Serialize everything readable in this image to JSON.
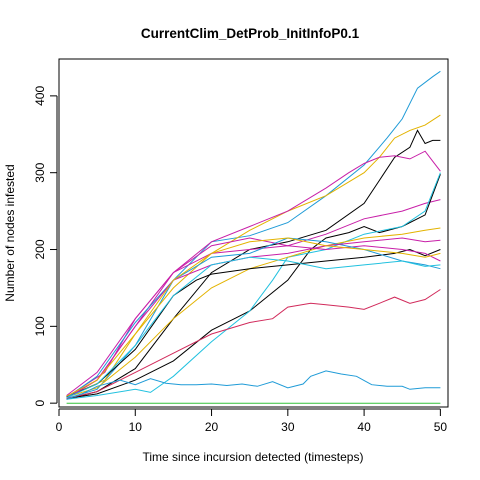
{
  "chart_data": {
    "type": "line",
    "title": "CurrentClim_DetProb_InitInfoP0.1",
    "xlabel": "Time since incursion detected (timesteps)",
    "ylabel": "Number of nodes infested",
    "xlim": [
      0,
      51
    ],
    "ylim": [
      -5,
      448
    ],
    "xticks": [
      0,
      10,
      20,
      30,
      40,
      50
    ],
    "yticks": [
      0,
      100,
      200,
      300,
      400
    ],
    "grid": false,
    "legend": "none",
    "series": [
      {
        "color": "#1f9bd7",
        "points": [
          [
            1,
            6
          ],
          [
            5,
            18
          ],
          [
            10,
            75
          ],
          [
            15,
            160
          ],
          [
            20,
            210
          ],
          [
            25,
            218
          ],
          [
            30,
            235
          ],
          [
            35,
            270
          ],
          [
            40,
            310
          ],
          [
            43,
            345
          ],
          [
            45,
            370
          ],
          [
            47,
            410
          ],
          [
            49,
            425
          ],
          [
            50,
            432
          ]
        ]
      },
      {
        "color": "#e3b300",
        "points": [
          [
            1,
            8
          ],
          [
            6,
            30
          ],
          [
            10,
            90
          ],
          [
            15,
            150
          ],
          [
            20,
            195
          ],
          [
            25,
            225
          ],
          [
            30,
            250
          ],
          [
            35,
            270
          ],
          [
            40,
            300
          ],
          [
            42,
            320
          ],
          [
            44,
            345
          ],
          [
            46,
            355
          ],
          [
            48,
            362
          ],
          [
            50,
            375
          ]
        ]
      },
      {
        "color": "#000000",
        "points": [
          [
            1,
            5
          ],
          [
            5,
            15
          ],
          [
            10,
            45
          ],
          [
            15,
            110
          ],
          [
            20,
            170
          ],
          [
            25,
            200
          ],
          [
            30,
            210
          ],
          [
            35,
            225
          ],
          [
            40,
            260
          ],
          [
            42,
            290
          ],
          [
            44,
            320
          ],
          [
            46,
            333
          ],
          [
            47,
            355
          ],
          [
            48,
            338
          ],
          [
            49,
            342
          ],
          [
            50,
            342
          ]
        ]
      },
      {
        "color": "#c81fa8",
        "points": [
          [
            1,
            8
          ],
          [
            6,
            40
          ],
          [
            10,
            110
          ],
          [
            15,
            170
          ],
          [
            20,
            210
          ],
          [
            25,
            230
          ],
          [
            30,
            250
          ],
          [
            35,
            280
          ],
          [
            38,
            300
          ],
          [
            40,
            312
          ],
          [
            42,
            320
          ],
          [
            44,
            322
          ],
          [
            46,
            318
          ],
          [
            48,
            328
          ],
          [
            49,
            315
          ],
          [
            50,
            302
          ]
        ]
      },
      {
        "color": "#c81fa8",
        "points": [
          [
            1,
            7
          ],
          [
            5,
            30
          ],
          [
            10,
            100
          ],
          [
            15,
            170
          ],
          [
            20,
            205
          ],
          [
            25,
            215
          ],
          [
            30,
            205
          ],
          [
            35,
            220
          ],
          [
            40,
            240
          ],
          [
            45,
            250
          ],
          [
            48,
            260
          ],
          [
            50,
            265
          ]
        ]
      },
      {
        "color": "#000000",
        "points": [
          [
            1,
            6
          ],
          [
            5,
            12
          ],
          [
            10,
            30
          ],
          [
            15,
            55
          ],
          [
            20,
            95
          ],
          [
            23,
            110
          ],
          [
            25,
            120
          ],
          [
            30,
            160
          ],
          [
            33,
            200
          ],
          [
            35,
            215
          ],
          [
            38,
            222
          ],
          [
            40,
            230
          ],
          [
            42,
            222
          ],
          [
            45,
            230
          ],
          [
            48,
            245
          ],
          [
            50,
            298
          ]
        ]
      },
      {
        "color": "#21c1df",
        "points": [
          [
            1,
            5
          ],
          [
            5,
            10
          ],
          [
            10,
            18
          ],
          [
            12,
            14
          ],
          [
            15,
            35
          ],
          [
            20,
            80
          ],
          [
            25,
            120
          ],
          [
            28,
            160
          ],
          [
            30,
            190
          ],
          [
            35,
            200
          ],
          [
            40,
            220
          ],
          [
            45,
            230
          ],
          [
            48,
            250
          ],
          [
            50,
            300
          ]
        ]
      },
      {
        "color": "#e3b300",
        "points": [
          [
            1,
            8
          ],
          [
            5,
            20
          ],
          [
            10,
            60
          ],
          [
            15,
            110
          ],
          [
            20,
            150
          ],
          [
            25,
            175
          ],
          [
            30,
            190
          ],
          [
            35,
            205
          ],
          [
            40,
            215
          ],
          [
            45,
            220
          ],
          [
            48,
            225
          ],
          [
            50,
            228
          ]
        ]
      },
      {
        "color": "#000000",
        "points": [
          [
            1,
            8
          ],
          [
            5,
            25
          ],
          [
            10,
            70
          ],
          [
            15,
            140
          ],
          [
            18,
            160
          ],
          [
            20,
            168
          ],
          [
            25,
            175
          ],
          [
            30,
            180
          ],
          [
            35,
            185
          ],
          [
            40,
            190
          ],
          [
            44,
            195
          ],
          [
            46,
            200
          ],
          [
            48,
            192
          ],
          [
            50,
            200
          ]
        ]
      },
      {
        "color": "#c81fa8",
        "points": [
          [
            1,
            10
          ],
          [
            5,
            40
          ],
          [
            10,
            110
          ],
          [
            15,
            170
          ],
          [
            20,
            195
          ],
          [
            25,
            200
          ],
          [
            30,
            205
          ],
          [
            35,
            200
          ],
          [
            40,
            205
          ],
          [
            45,
            200
          ],
          [
            48,
            195
          ],
          [
            50,
            185
          ]
        ]
      },
      {
        "color": "#1f9bd7",
        "points": [
          [
            1,
            7
          ],
          [
            5,
            35
          ],
          [
            10,
            105
          ],
          [
            15,
            160
          ],
          [
            20,
            190
          ],
          [
            25,
            195
          ],
          [
            30,
            215
          ],
          [
            35,
            210
          ],
          [
            40,
            200
          ],
          [
            45,
            185
          ],
          [
            48,
            180
          ],
          [
            50,
            175
          ]
        ]
      },
      {
        "color": "#c81fa8",
        "points": [
          [
            1,
            6
          ],
          [
            5,
            30
          ],
          [
            10,
            100
          ],
          [
            15,
            160
          ],
          [
            20,
            180
          ],
          [
            25,
            190
          ],
          [
            30,
            195
          ],
          [
            35,
            205
          ],
          [
            40,
            210
          ],
          [
            45,
            215
          ],
          [
            48,
            210
          ],
          [
            50,
            212
          ]
        ]
      },
      {
        "color": "#d12a5b",
        "points": [
          [
            1,
            6
          ],
          [
            5,
            15
          ],
          [
            10,
            40
          ],
          [
            15,
            65
          ],
          [
            20,
            90
          ],
          [
            25,
            105
          ],
          [
            28,
            110
          ],
          [
            30,
            125
          ],
          [
            33,
            130
          ],
          [
            35,
            128
          ],
          [
            38,
            125
          ],
          [
            40,
            122
          ],
          [
            42,
            130
          ],
          [
            44,
            138
          ],
          [
            46,
            130
          ],
          [
            48,
            135
          ],
          [
            50,
            148
          ]
        ]
      },
      {
        "color": "#21c1df",
        "points": [
          [
            1,
            7
          ],
          [
            5,
            25
          ],
          [
            10,
            75
          ],
          [
            15,
            140
          ],
          [
            20,
            180
          ],
          [
            25,
            190
          ],
          [
            30,
            185
          ],
          [
            35,
            175
          ],
          [
            40,
            180
          ],
          [
            45,
            185
          ],
          [
            48,
            178
          ],
          [
            50,
            180
          ]
        ]
      },
      {
        "color": "#1f9bd7",
        "points": [
          [
            1,
            5
          ],
          [
            3,
            12
          ],
          [
            5,
            22
          ],
          [
            8,
            30
          ],
          [
            10,
            24
          ],
          [
            12,
            32
          ],
          [
            14,
            26
          ],
          [
            16,
            24
          ],
          [
            18,
            24
          ],
          [
            20,
            25
          ],
          [
            22,
            23
          ],
          [
            24,
            25
          ],
          [
            26,
            22
          ],
          [
            28,
            28
          ],
          [
            30,
            20
          ],
          [
            32,
            25
          ],
          [
            33,
            35
          ],
          [
            35,
            42
          ],
          [
            37,
            38
          ],
          [
            39,
            35
          ],
          [
            41,
            24
          ],
          [
            43,
            22
          ],
          [
            45,
            22
          ],
          [
            46,
            18
          ],
          [
            48,
            20
          ],
          [
            50,
            20
          ]
        ]
      },
      {
        "color": "#33c33a",
        "points": [
          [
            1,
            0
          ],
          [
            50,
            0
          ]
        ]
      },
      {
        "color": "#e3b300",
        "points": [
          [
            1,
            9
          ],
          [
            5,
            30
          ],
          [
            10,
            90
          ],
          [
            15,
            160
          ],
          [
            20,
            195
          ],
          [
            25,
            210
          ],
          [
            30,
            215
          ],
          [
            35,
            205
          ],
          [
            40,
            200
          ],
          [
            45,
            195
          ],
          [
            48,
            190
          ],
          [
            50,
            195
          ]
        ]
      }
    ]
  }
}
